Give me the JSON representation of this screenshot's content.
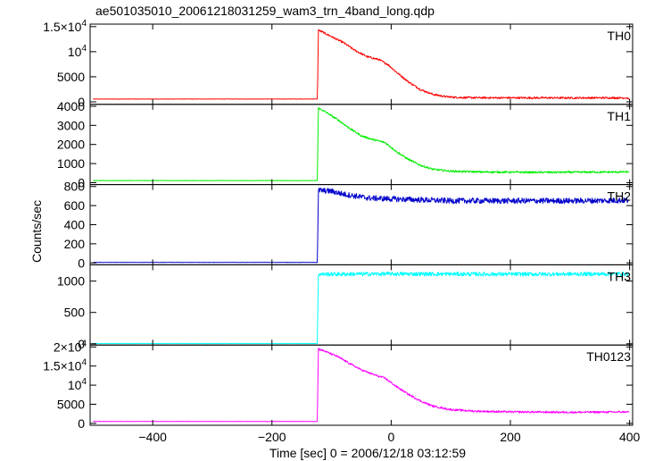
{
  "title": "ae501035010_20061218031259_wam3_trn_4band_long.qdp",
  "chart_data": {
    "type": "line",
    "xlabel": "Time [sec] 0 = 2006/12/18 03:12:59",
    "ylabel": "Counts/sec",
    "xlim": [
      -505,
      405
    ],
    "xticks": [
      -400,
      -200,
      0,
      200,
      400
    ],
    "xtick_labels": [
      "−400",
      "−200",
      "0",
      "200",
      "400"
    ],
    "panels": [
      {
        "name": "TH0",
        "color": "#ff0000",
        "ylim": [
          -500,
          15500
        ],
        "yticks": [
          0,
          5000,
          10000,
          15000
        ],
        "ytick_labels": [
          [
            "0"
          ],
          [
            "5000"
          ],
          [
            "10",
            "4"
          ],
          [
            "1.5×10",
            "4"
          ]
        ],
        "points": [
          [
            -500,
            550
          ],
          [
            -130,
            560
          ],
          [
            -124,
            560
          ],
          [
            -123,
            6000
          ],
          [
            -122,
            14300
          ],
          [
            -115,
            13900
          ],
          [
            -100,
            13000
          ],
          [
            -80,
            11800
          ],
          [
            -60,
            10200
          ],
          [
            -40,
            9000
          ],
          [
            -20,
            8400
          ],
          [
            -5,
            7400
          ],
          [
            10,
            5800
          ],
          [
            30,
            3900
          ],
          [
            50,
            2400
          ],
          [
            70,
            1500
          ],
          [
            90,
            1050
          ],
          [
            110,
            880
          ],
          [
            140,
            820
          ],
          [
            200,
            800
          ],
          [
            300,
            790
          ],
          [
            395,
            800
          ],
          [
            398,
            700
          ],
          [
            400,
            250
          ]
        ]
      },
      {
        "name": "TH1",
        "color": "#00ee00",
        "ylim": [
          -100,
          4100
        ],
        "yticks": [
          0,
          1000,
          2000,
          3000,
          4000
        ],
        "ytick_labels": [
          [
            "0"
          ],
          [
            "1000"
          ],
          [
            "2000"
          ],
          [
            "3000"
          ],
          [
            "4000"
          ]
        ],
        "points": [
          [
            -500,
            110
          ],
          [
            -124,
            110
          ],
          [
            -123,
            2000
          ],
          [
            -122,
            3900
          ],
          [
            -110,
            3700
          ],
          [
            -90,
            3300
          ],
          [
            -70,
            2850
          ],
          [
            -50,
            2450
          ],
          [
            -30,
            2250
          ],
          [
            -10,
            2100
          ],
          [
            10,
            1600
          ],
          [
            30,
            1200
          ],
          [
            50,
            900
          ],
          [
            70,
            700
          ],
          [
            100,
            600
          ],
          [
            150,
            560
          ],
          [
            250,
            540
          ],
          [
            400,
            560
          ]
        ]
      },
      {
        "name": "TH2",
        "color": "#0000cc",
        "ylim": [
          -20,
          820
        ],
        "yticks": [
          0,
          200,
          400,
          600,
          800
        ],
        "ytick_labels": [
          [
            "0"
          ],
          [
            "200"
          ],
          [
            "400"
          ],
          [
            "600"
          ],
          [
            "800"
          ]
        ],
        "points": [
          [
            -500,
            5
          ],
          [
            -124,
            5
          ],
          [
            -123,
            350
          ],
          [
            -122,
            760
          ],
          [
            -100,
            750
          ],
          [
            -80,
            720
          ],
          [
            -40,
            680
          ],
          [
            0,
            670
          ],
          [
            100,
            650
          ],
          [
            200,
            650
          ],
          [
            300,
            650
          ],
          [
            400,
            655
          ]
        ]
      },
      {
        "name": "TH3",
        "color": "#00ffff",
        "ylim": [
          -20,
          1260
        ],
        "yticks": [
          0,
          500,
          1000
        ],
        "ytick_labels": [
          [
            "0"
          ],
          [
            "500"
          ],
          [
            "1000"
          ]
        ],
        "points": [
          [
            -500,
            5
          ],
          [
            -124,
            5
          ],
          [
            -123,
            600
          ],
          [
            -122,
            1110
          ],
          [
            0,
            1115
          ],
          [
            200,
            1110
          ],
          [
            400,
            1115
          ]
        ]
      },
      {
        "name": "TH0123",
        "color": "#ff00ff",
        "ylim": [
          -500,
          20500
        ],
        "yticks": [
          0,
          5000,
          10000,
          15000,
          20000
        ],
        "ytick_labels": [
          [
            "0"
          ],
          [
            "5000"
          ],
          [
            "10",
            "4"
          ],
          [
            "1.5×10",
            "4"
          ],
          [
            "2×10",
            "4"
          ]
        ],
        "points": [
          [
            -500,
            500
          ],
          [
            -124,
            500
          ],
          [
            -123,
            10000
          ],
          [
            -122,
            19500
          ],
          [
            -110,
            18800
          ],
          [
            -90,
            17500
          ],
          [
            -70,
            15700
          ],
          [
            -50,
            14000
          ],
          [
            -30,
            12800
          ],
          [
            -10,
            11800
          ],
          [
            10,
            9500
          ],
          [
            30,
            7500
          ],
          [
            50,
            5800
          ],
          [
            70,
            4500
          ],
          [
            100,
            3600
          ],
          [
            140,
            3200
          ],
          [
            200,
            3000
          ],
          [
            300,
            2900
          ],
          [
            400,
            3000
          ]
        ]
      }
    ]
  }
}
